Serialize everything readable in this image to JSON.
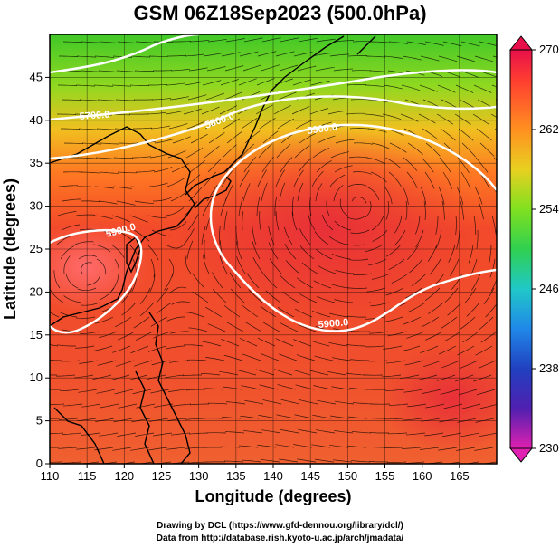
{
  "title": "GSM 06Z18Sep2023 (500.0hPa)",
  "xlabel": "Longitude (degrees)",
  "ylabel": "Latitude  (degrees)",
  "x_ticks": [
    "110",
    "115",
    "120",
    "125",
    "130",
    "135",
    "140",
    "145",
    "150",
    "155",
    "160",
    "165"
  ],
  "y_ticks": [
    "0",
    "5",
    "10",
    "15",
    "20",
    "25",
    "30",
    "35",
    "40",
    "45"
  ],
  "colorbar": {
    "labels": [
      "270",
      "262",
      "254",
      "246",
      "238",
      "230"
    ],
    "colors": [
      "#e0004a",
      "#f0304a",
      "#ff5030",
      "#ff8a20",
      "#ffb020",
      "#e0d020",
      "#a8e020",
      "#30d030",
      "#20d0b0",
      "#20a0e0",
      "#2060d8",
      "#2020b0",
      "#6020b0",
      "#b020c0",
      "#e020b0"
    ]
  },
  "contours": [
    {
      "label": "5900.0"
    },
    {
      "label": "5900.0"
    },
    {
      "label": "5900.0"
    },
    {
      "label": "5700.0"
    },
    {
      "label": "5800.0"
    }
  ],
  "credits": {
    "line1": "Drawing by DCL (https://www.gfd-dennou.org/library/dcl/)",
    "line2": "Data from http://database.rish.kyoto-u.ac.jp/arch/jmadata/"
  }
}
